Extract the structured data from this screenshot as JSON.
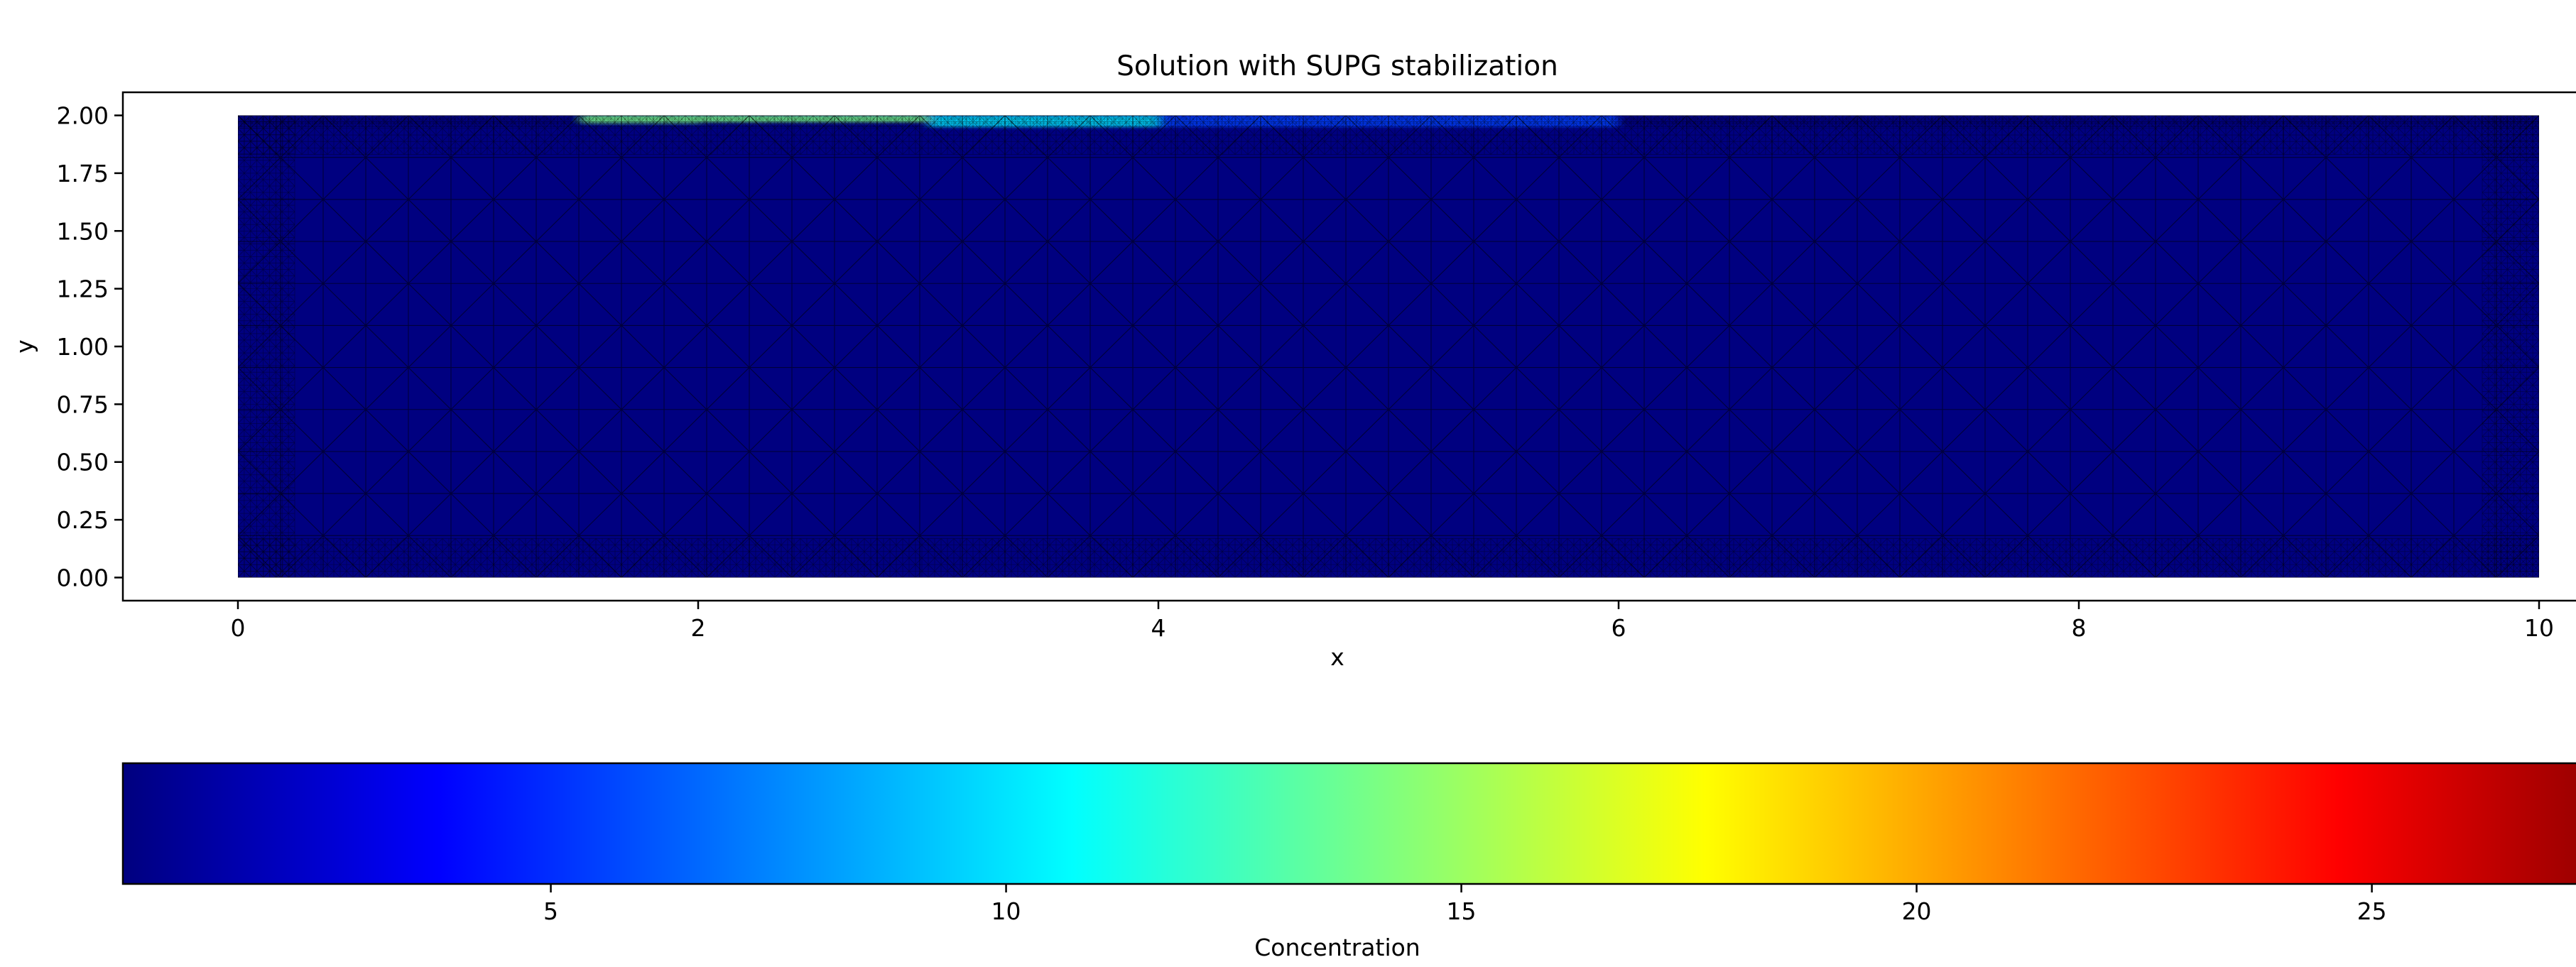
{
  "chart_data": [
    {
      "type": "heatmap",
      "subtype": "triangular-mesh-field",
      "title": "Solution with SUPG stabilization",
      "xlabel": "x",
      "ylabel": "y",
      "xlim": [
        -0.5,
        10.5
      ],
      "ylim": [
        -0.1,
        2.1
      ],
      "xticks": [
        0,
        2,
        4,
        6,
        8,
        10
      ],
      "xtick_labels": [
        "0",
        "2",
        "4",
        "6",
        "8",
        "10"
      ],
      "yticks": [
        0.0,
        0.25,
        0.5,
        0.75,
        1.0,
        1.25,
        1.5,
        1.75,
        2.0
      ],
      "ytick_labels": [
        "0.00",
        "0.25",
        "0.50",
        "0.75",
        "1.00",
        "1.25",
        "1.50",
        "1.75",
        "2.00"
      ],
      "domain": {
        "x": [
          0,
          10
        ],
        "y": [
          0,
          2
        ]
      },
      "mesh": {
        "shown": true,
        "edge_color": "#000000",
        "refined_near_boundaries": true
      },
      "background_value": 0.3,
      "features": [
        {
          "x_start": 0.9,
          "x_end": 2.0,
          "y_top": 2.0,
          "y_bottom": 1.9,
          "value": 0.05
        },
        {
          "x_start": 1.5,
          "x_end": 3.0,
          "y_top": 2.0,
          "y_bottom": 1.97,
          "value": 14.0
        },
        {
          "x_start": 3.0,
          "x_end": 4.0,
          "y_top": 2.0,
          "y_bottom": 1.95,
          "value": 10.0
        },
        {
          "x_start": 4.0,
          "x_end": 6.0,
          "y_top": 2.0,
          "y_bottom": 1.95,
          "value": 5.5
        }
      ],
      "grid": false
    },
    {
      "type": "colorbar",
      "label": "Concentration",
      "orientation": "horizontal",
      "colormap": "jet",
      "range": [
        0.3,
        28.1
      ],
      "ticks": [
        5,
        10,
        15,
        20,
        25
      ],
      "tick_labels": [
        "5",
        "10",
        "15",
        "20",
        "25"
      ],
      "colors": [
        "#00007F",
        "#0000FF",
        "#007FFF",
        "#00FFFF",
        "#7FFF7F",
        "#FFFF00",
        "#FF7F00",
        "#FF0000",
        "#7F0000"
      ]
    }
  ],
  "colors": {
    "field_background": "#00007F",
    "mesh_lines": "#000000"
  }
}
